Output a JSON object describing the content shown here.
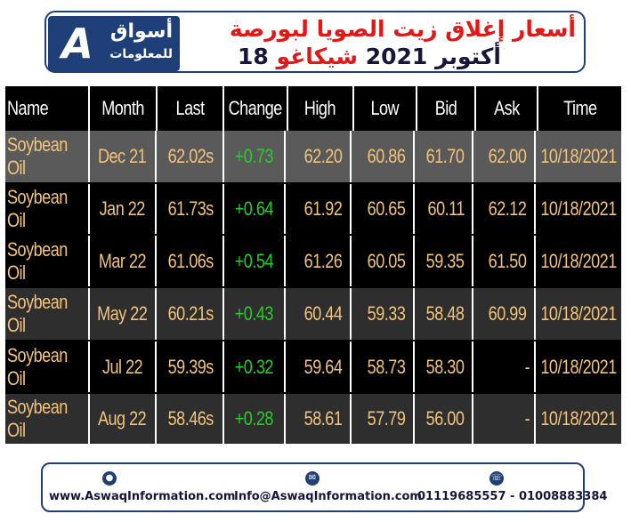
{
  "header": {
    "logo_brand": "أسواق",
    "logo_sub": "للمعلومات",
    "title_line1": "أسعار إغلاق زيت الصويا لبورصة",
    "title_line2_prefix": "شيكاغو",
    "title_line2_date": "18 أكتوبر 2021"
  },
  "colors": {
    "brand_navy": "#1f3f78",
    "title_red": "#e01818",
    "text_gold": "#f2c37a",
    "change_green": "#22d022",
    "row_shade": "#5a5a5a",
    "row_shade_alt": "#2e2e2e"
  },
  "table": {
    "columns": [
      "Name",
      "Month",
      "Last",
      "Change",
      "High",
      "Low",
      "Bid",
      "Ask",
      "Time"
    ],
    "rows": [
      [
        "Soybean Oil",
        "Dec 21",
        "62.02s",
        "+0.73",
        "62.20",
        "60.86",
        "61.70",
        "62.00",
        "10/18/2021"
      ],
      [
        "Soybean Oil",
        "Jan 22",
        "61.73s",
        "+0.64",
        "61.92",
        "60.65",
        "60.11",
        "62.12",
        "10/18/2021"
      ],
      [
        "Soybean Oil",
        "Mar 22",
        "61.06s",
        "+0.54",
        "61.26",
        "60.05",
        "59.35",
        "61.50",
        "10/18/2021"
      ],
      [
        "Soybean Oil",
        "May 22",
        "60.21s",
        "+0.43",
        "60.44",
        "59.33",
        "58.48",
        "60.99",
        "10/18/2021"
      ],
      [
        "Soybean Oil",
        "Jul 22",
        "59.39s",
        "+0.32",
        "59.64",
        "58.73",
        "58.30",
        "-",
        "10/18/2021"
      ],
      [
        "Soybean Oil",
        "Aug 22",
        "58.46s",
        "+0.28",
        "58.61",
        "57.79",
        "56.00",
        "-",
        "10/18/2021"
      ]
    ]
  },
  "footer": {
    "website": "www.AswaqInformation.com",
    "email": "Info@AswaqInformation.com",
    "phones": "01119685557 - 01008883384",
    "icons": [
      "globe-icon",
      "email-icon",
      "phone-icon"
    ]
  }
}
